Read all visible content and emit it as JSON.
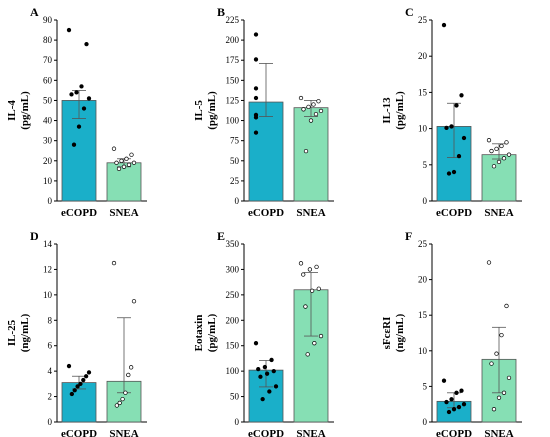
{
  "colors": {
    "ecopd": "#1aafc9",
    "snea": "#86dfb4",
    "edge": "#555555"
  },
  "chart_data": [
    {
      "type": "bar",
      "panel": "A",
      "ylabel_line1": "IL-4",
      "ylabel_line2": "(pg/mL)",
      "categories": [
        "eCOPD",
        "SNEA"
      ],
      "ylim": [
        0,
        90
      ],
      "yticks": [
        0,
        10,
        20,
        30,
        40,
        50,
        60,
        70,
        80,
        90
      ],
      "means": [
        50,
        19
      ],
      "error_low": [
        41,
        17
      ],
      "error_high": [
        55,
        21
      ],
      "points": [
        [
          85,
          78,
          57,
          54,
          53,
          51,
          46,
          37,
          28
        ],
        [
          26,
          23,
          21,
          20,
          19,
          19,
          18,
          17,
          16
        ]
      ]
    },
    {
      "type": "bar",
      "panel": "B",
      "ylabel_line1": "IL-5",
      "ylabel_line2": "(pg/mL)",
      "categories": [
        "eCOPD",
        "SNEA"
      ],
      "ylim": [
        0,
        225
      ],
      "yticks": [
        0,
        25,
        50,
        75,
        100,
        125,
        150,
        175,
        200,
        225
      ],
      "means": [
        123,
        116
      ],
      "error_low": [
        105,
        105
      ],
      "error_high": [
        171,
        125
      ],
      "points": [
        [
          207,
          176,
          140,
          128,
          107,
          104,
          85
        ],
        [
          128,
          124,
          120,
          117,
          114,
          112,
          108,
          100,
          62
        ]
      ]
    },
    {
      "type": "bar",
      "panel": "C",
      "ylabel_line1": "IL-13",
      "ylabel_line2": "(pg/mL)",
      "categories": [
        "eCOPD",
        "SNEA"
      ],
      "ylim": [
        0,
        25
      ],
      "yticks": [
        0,
        5,
        10,
        15,
        20,
        25
      ],
      "means": [
        10.3,
        6.4
      ],
      "error_low": [
        6.0,
        5.8
      ],
      "error_high": [
        13.5,
        7.9
      ],
      "points": [
        [
          24.3,
          14.6,
          13.2,
          10.3,
          10.1,
          8.7,
          6.2,
          4.0,
          3.8
        ],
        [
          8.4,
          8.1,
          7.6,
          7.2,
          6.9,
          6.4,
          5.9,
          5.4,
          4.8
        ]
      ]
    },
    {
      "type": "bar",
      "panel": "D",
      "ylabel_line1": "IL-25",
      "ylabel_line2": "(ng/mL)",
      "categories": [
        "eCOPD",
        "SNEA"
      ],
      "ylim": [
        0,
        14
      ],
      "yticks": [
        0,
        2,
        4,
        6,
        8,
        10,
        12,
        14
      ],
      "means": [
        3.1,
        3.2
      ],
      "error_low": [
        2.6,
        2.3
      ],
      "error_high": [
        3.6,
        8.2
      ],
      "points": [
        [
          4.4,
          3.9,
          3.6,
          3.3,
          3.0,
          2.8,
          2.5,
          2.2
        ],
        [
          12.5,
          9.5,
          4.3,
          3.7,
          2.3,
          1.8,
          1.5,
          1.3
        ]
      ]
    },
    {
      "type": "bar",
      "panel": "E",
      "ylabel_line1": "Eotaxin",
      "ylabel_line2": "(pg/mL)",
      "categories": [
        "eCOPD",
        "SNEA"
      ],
      "ylim": [
        0,
        350
      ],
      "yticks": [
        0,
        50,
        100,
        150,
        200,
        250,
        300,
        350
      ],
      "means": [
        102,
        260
      ],
      "error_low": [
        69,
        169
      ],
      "error_high": [
        121,
        294
      ],
      "points": [
        [
          155,
          122,
          108,
          104,
          100,
          95,
          89,
          70,
          60,
          45
        ],
        [
          312,
          305,
          300,
          290,
          262,
          258,
          227,
          169,
          155,
          133
        ]
      ]
    },
    {
      "type": "bar",
      "panel": "F",
      "ylabel_line1": "sFcεRI",
      "ylabel_line2": "(ng/mL)",
      "categories": [
        "eCOPD",
        "SNEA"
      ],
      "ylim": [
        0,
        25
      ],
      "yticks": [
        0,
        5,
        10,
        15,
        20,
        25
      ],
      "means": [
        2.9,
        8.8
      ],
      "error_low": [
        2.0,
        4.1
      ],
      "error_high": [
        4.1,
        13.3
      ],
      "points": [
        [
          5.8,
          4.4,
          4.1,
          3.2,
          2.8,
          2.5,
          2.1,
          1.8,
          1.4
        ],
        [
          22.4,
          16.3,
          12.2,
          9.6,
          8.2,
          6.2,
          4.1,
          3.4,
          1.8
        ]
      ]
    }
  ]
}
